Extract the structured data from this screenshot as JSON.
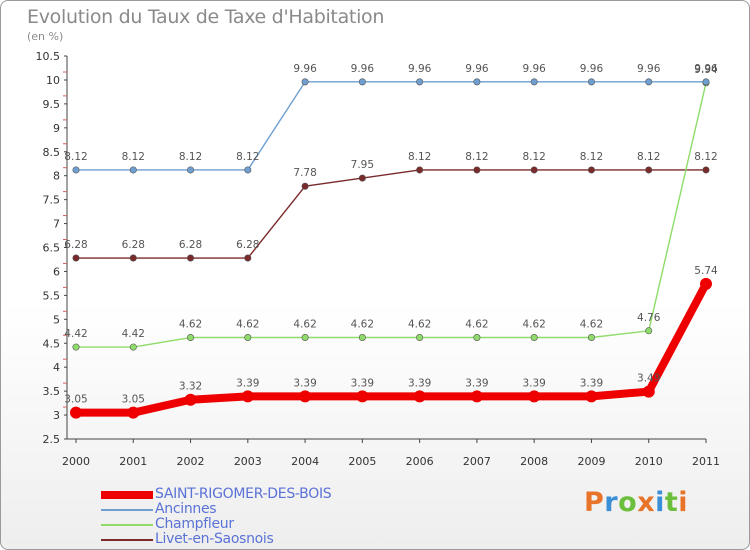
{
  "header": {
    "title": "Evolution du Taux de Taxe d'Habitation",
    "unit": "(en %)"
  },
  "logo": {
    "text": "Proxiti",
    "letter_colors": [
      "#e8742a",
      "#3b8fd6",
      "#6cbf3c",
      "#e8742a",
      "#3b8fd6",
      "#6cbf3c",
      "#e8742a"
    ]
  },
  "chart_data": {
    "type": "line",
    "title": "Evolution du Taux de Taxe d'Habitation",
    "ylabel": "(en %)",
    "xlabel": "",
    "ylim": [
      2.5,
      10.5
    ],
    "y_ticks": [
      "2.5",
      "3",
      "3.5",
      "4",
      "4.5",
      "5",
      "5.5",
      "6",
      "6.5",
      "7",
      "7.5",
      "8",
      "8.5",
      "9",
      "9.5",
      "10",
      "10.5"
    ],
    "x": [
      "2000",
      "2001",
      "2002",
      "2003",
      "2004",
      "2005",
      "2006",
      "2007",
      "2008",
      "2009",
      "2010",
      "2011"
    ],
    "grid": false,
    "legend_position": "bottom-left",
    "series": [
      {
        "name": "SAINT-RIGOMER-DES-BOIS",
        "color": "#ee0000",
        "emphasis": true,
        "values": [
          3.05,
          3.05,
          3.32,
          3.39,
          3.39,
          3.39,
          3.39,
          3.39,
          3.39,
          3.39,
          3.49,
          5.74
        ],
        "labels": [
          "3.05",
          "3.05",
          "3.32",
          "3.39",
          "3.39",
          "3.39",
          "3.39",
          "3.39",
          "3.39",
          "3.39",
          "3.49",
          "5.74"
        ]
      },
      {
        "name": "Ancinnes",
        "color": "#6e9fd0",
        "emphasis": false,
        "values": [
          8.12,
          8.12,
          8.12,
          8.12,
          9.96,
          9.96,
          9.96,
          9.96,
          9.96,
          9.96,
          9.96,
          9.96
        ],
        "labels": [
          "8.12",
          "8.12",
          "8.12",
          "8.12",
          "9.96",
          "9.96",
          "9.96",
          "9.96",
          "9.96",
          "9.96",
          "9.96",
          "9.96"
        ]
      },
      {
        "name": "Champfleur",
        "color": "#8fdc6a",
        "emphasis": false,
        "values": [
          4.42,
          4.42,
          4.62,
          4.62,
          4.62,
          4.62,
          4.62,
          4.62,
          4.62,
          4.62,
          4.76,
          9.94
        ],
        "labels": [
          "4.42",
          "4.42",
          "4.62",
          "4.62",
          "4.62",
          "4.62",
          "4.62",
          "4.62",
          "4.62",
          "4.62",
          "4.76",
          "9.94"
        ]
      },
      {
        "name": "Livet-en-Saosnois",
        "color": "#7a2a2a",
        "emphasis": false,
        "values": [
          6.28,
          6.28,
          6.28,
          6.28,
          7.78,
          7.95,
          8.12,
          8.12,
          8.12,
          8.12,
          8.12,
          8.12
        ],
        "labels": [
          "6.28",
          "6.28",
          "6.28",
          "6.28",
          "7.78",
          "7.95",
          "8.12",
          "8.12",
          "8.12",
          "8.12",
          "8.12",
          "8.12"
        ]
      }
    ]
  }
}
